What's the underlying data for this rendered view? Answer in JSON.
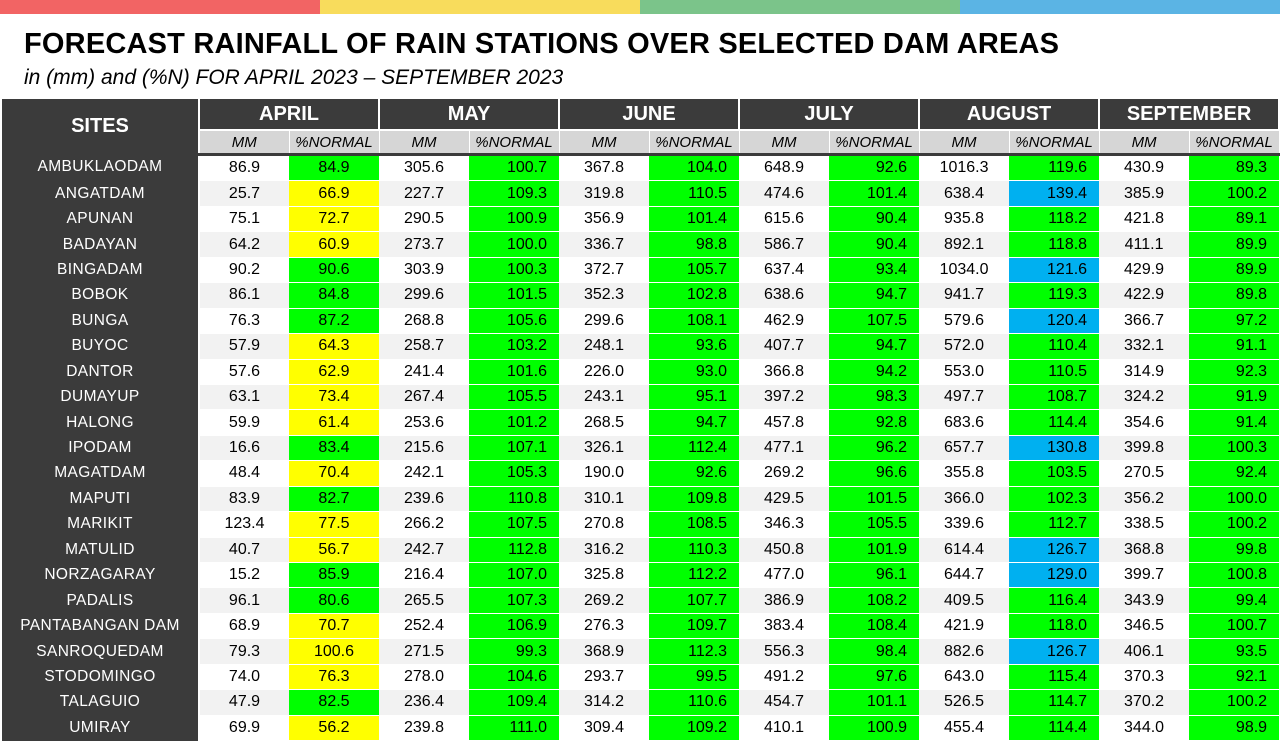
{
  "colors": {
    "top_bar": [
      "#f26464",
      "#f8dc5c",
      "#7bc48a",
      "#5bb4e4"
    ],
    "header_bg": "#3b3b3b",
    "legend": {
      "green": "#00ff00",
      "yellow": "#ffff00",
      "blue": "#00b0f0"
    }
  },
  "title": "FORECAST RAINFALL OF RAIN STATIONS OVER SELECTED DAM AREAS",
  "subtitle": "in (mm) and (%N) FOR APRIL 2023 – SEPTEMBER 2023",
  "table": {
    "site_header": "SITES",
    "months": [
      "APRIL",
      "MAY",
      "JUNE",
      "JULY",
      "AUGUST",
      "SEPTEMBER"
    ],
    "sub_headers": {
      "mm": "MM",
      "pct": "%NORMAL"
    },
    "rows": [
      {
        "site": "AMBUKLAODAM",
        "values": [
          [
            "86.9",
            "84.9",
            "green"
          ],
          [
            "305.6",
            "100.7",
            "green"
          ],
          [
            "367.8",
            "104.0",
            "green"
          ],
          [
            "648.9",
            "92.6",
            "green"
          ],
          [
            "1016.3",
            "119.6",
            "green"
          ],
          [
            "430.9",
            "89.3",
            "green"
          ]
        ]
      },
      {
        "site": "ANGATDAM",
        "values": [
          [
            "25.7",
            "66.9",
            "yellow"
          ],
          [
            "227.7",
            "109.3",
            "green"
          ],
          [
            "319.8",
            "110.5",
            "green"
          ],
          [
            "474.6",
            "101.4",
            "green"
          ],
          [
            "638.4",
            "139.4",
            "blue"
          ],
          [
            "385.9",
            "100.2",
            "green"
          ]
        ]
      },
      {
        "site": "APUNAN",
        "values": [
          [
            "75.1",
            "72.7",
            "yellow"
          ],
          [
            "290.5",
            "100.9",
            "green"
          ],
          [
            "356.9",
            "101.4",
            "green"
          ],
          [
            "615.6",
            "90.4",
            "green"
          ],
          [
            "935.8",
            "118.2",
            "green"
          ],
          [
            "421.8",
            "89.1",
            "green"
          ]
        ]
      },
      {
        "site": "BADAYAN",
        "values": [
          [
            "64.2",
            "60.9",
            "yellow"
          ],
          [
            "273.7",
            "100.0",
            "green"
          ],
          [
            "336.7",
            "98.8",
            "green"
          ],
          [
            "586.7",
            "90.4",
            "green"
          ],
          [
            "892.1",
            "118.8",
            "green"
          ],
          [
            "411.1",
            "89.9",
            "green"
          ]
        ]
      },
      {
        "site": "BINGADAM",
        "values": [
          [
            "90.2",
            "90.6",
            "green"
          ],
          [
            "303.9",
            "100.3",
            "green"
          ],
          [
            "372.7",
            "105.7",
            "green"
          ],
          [
            "637.4",
            "93.4",
            "green"
          ],
          [
            "1034.0",
            "121.6",
            "blue"
          ],
          [
            "429.9",
            "89.9",
            "green"
          ]
        ]
      },
      {
        "site": "BOBOK",
        "values": [
          [
            "86.1",
            "84.8",
            "green"
          ],
          [
            "299.6",
            "101.5",
            "green"
          ],
          [
            "352.3",
            "102.8",
            "green"
          ],
          [
            "638.6",
            "94.7",
            "green"
          ],
          [
            "941.7",
            "119.3",
            "green"
          ],
          [
            "422.9",
            "89.8",
            "green"
          ]
        ]
      },
      {
        "site": "BUNGA",
        "values": [
          [
            "76.3",
            "87.2",
            "green"
          ],
          [
            "268.8",
            "105.6",
            "green"
          ],
          [
            "299.6",
            "108.1",
            "green"
          ],
          [
            "462.9",
            "107.5",
            "green"
          ],
          [
            "579.6",
            "120.4",
            "blue"
          ],
          [
            "366.7",
            "97.2",
            "green"
          ]
        ]
      },
      {
        "site": "BUYOC",
        "values": [
          [
            "57.9",
            "64.3",
            "yellow"
          ],
          [
            "258.7",
            "103.2",
            "green"
          ],
          [
            "248.1",
            "93.6",
            "green"
          ],
          [
            "407.7",
            "94.7",
            "green"
          ],
          [
            "572.0",
            "110.4",
            "green"
          ],
          [
            "332.1",
            "91.1",
            "green"
          ]
        ]
      },
      {
        "site": "DANTOR",
        "values": [
          [
            "57.6",
            "62.9",
            "yellow"
          ],
          [
            "241.4",
            "101.6",
            "green"
          ],
          [
            "226.0",
            "93.0",
            "green"
          ],
          [
            "366.8",
            "94.2",
            "green"
          ],
          [
            "553.0",
            "110.5",
            "green"
          ],
          [
            "314.9",
            "92.3",
            "green"
          ]
        ]
      },
      {
        "site": "DUMAYUP",
        "values": [
          [
            "63.1",
            "73.4",
            "yellow"
          ],
          [
            "267.4",
            "105.5",
            "green"
          ],
          [
            "243.1",
            "95.1",
            "green"
          ],
          [
            "397.2",
            "98.3",
            "green"
          ],
          [
            "497.7",
            "108.7",
            "green"
          ],
          [
            "324.2",
            "91.9",
            "green"
          ]
        ]
      },
      {
        "site": "HALONG",
        "values": [
          [
            "59.9",
            "61.4",
            "yellow"
          ],
          [
            "253.6",
            "101.2",
            "green"
          ],
          [
            "268.5",
            "94.7",
            "green"
          ],
          [
            "457.8",
            "92.8",
            "green"
          ],
          [
            "683.6",
            "114.4",
            "green"
          ],
          [
            "354.6",
            "91.4",
            "green"
          ]
        ]
      },
      {
        "site": "IPODAM",
        "values": [
          [
            "16.6",
            "83.4",
            "green"
          ],
          [
            "215.6",
            "107.1",
            "green"
          ],
          [
            "326.1",
            "112.4",
            "green"
          ],
          [
            "477.1",
            "96.2",
            "green"
          ],
          [
            "657.7",
            "130.8",
            "blue"
          ],
          [
            "399.8",
            "100.3",
            "green"
          ]
        ]
      },
      {
        "site": "MAGATDAM",
        "values": [
          [
            "48.4",
            "70.4",
            "yellow"
          ],
          [
            "242.1",
            "105.3",
            "green"
          ],
          [
            "190.0",
            "92.6",
            "green"
          ],
          [
            "269.2",
            "96.6",
            "green"
          ],
          [
            "355.8",
            "103.5",
            "green"
          ],
          [
            "270.5",
            "92.4",
            "green"
          ]
        ]
      },
      {
        "site": "MAPUTI",
        "values": [
          [
            "83.9",
            "82.7",
            "green"
          ],
          [
            "239.6",
            "110.8",
            "green"
          ],
          [
            "310.1",
            "109.8",
            "green"
          ],
          [
            "429.5",
            "101.5",
            "green"
          ],
          [
            "366.0",
            "102.3",
            "green"
          ],
          [
            "356.2",
            "100.0",
            "green"
          ]
        ]
      },
      {
        "site": "MARIKIT",
        "values": [
          [
            "123.4",
            "77.5",
            "yellow"
          ],
          [
            "266.2",
            "107.5",
            "green"
          ],
          [
            "270.8",
            "108.5",
            "green"
          ],
          [
            "346.3",
            "105.5",
            "green"
          ],
          [
            "339.6",
            "112.7",
            "green"
          ],
          [
            "338.5",
            "100.2",
            "green"
          ]
        ]
      },
      {
        "site": "MATULID",
        "values": [
          [
            "40.7",
            "56.7",
            "yellow"
          ],
          [
            "242.7",
            "112.8",
            "green"
          ],
          [
            "316.2",
            "110.3",
            "green"
          ],
          [
            "450.8",
            "101.9",
            "green"
          ],
          [
            "614.4",
            "126.7",
            "blue"
          ],
          [
            "368.8",
            "99.8",
            "green"
          ]
        ]
      },
      {
        "site": "NORZAGARAY",
        "values": [
          [
            "15.2",
            "85.9",
            "green"
          ],
          [
            "216.4",
            "107.0",
            "green"
          ],
          [
            "325.8",
            "112.2",
            "green"
          ],
          [
            "477.0",
            "96.1",
            "green"
          ],
          [
            "644.7",
            "129.0",
            "blue"
          ],
          [
            "399.7",
            "100.8",
            "green"
          ]
        ]
      },
      {
        "site": "PADALIS",
        "values": [
          [
            "96.1",
            "80.6",
            "green"
          ],
          [
            "265.5",
            "107.3",
            "green"
          ],
          [
            "269.2",
            "107.7",
            "green"
          ],
          [
            "386.9",
            "108.2",
            "green"
          ],
          [
            "409.5",
            "116.4",
            "green"
          ],
          [
            "343.9",
            "99.4",
            "green"
          ]
        ]
      },
      {
        "site": "PANTABANGAN DAM",
        "values": [
          [
            "68.9",
            "70.7",
            "yellow"
          ],
          [
            "252.4",
            "106.9",
            "green"
          ],
          [
            "276.3",
            "109.7",
            "green"
          ],
          [
            "383.4",
            "108.4",
            "green"
          ],
          [
            "421.9",
            "118.0",
            "green"
          ],
          [
            "346.5",
            "100.7",
            "green"
          ]
        ]
      },
      {
        "site": "SANROQUEDAM",
        "values": [
          [
            "79.3",
            "100.6",
            "yellow"
          ],
          [
            "271.5",
            "99.3",
            "green"
          ],
          [
            "368.9",
            "112.3",
            "green"
          ],
          [
            "556.3",
            "98.4",
            "green"
          ],
          [
            "882.6",
            "126.7",
            "blue"
          ],
          [
            "406.1",
            "93.5",
            "green"
          ]
        ]
      },
      {
        "site": "STODOMINGO",
        "values": [
          [
            "74.0",
            "76.3",
            "yellow"
          ],
          [
            "278.0",
            "104.6",
            "green"
          ],
          [
            "293.7",
            "99.5",
            "green"
          ],
          [
            "491.2",
            "97.6",
            "green"
          ],
          [
            "643.0",
            "115.4",
            "green"
          ],
          [
            "370.3",
            "92.1",
            "green"
          ]
        ]
      },
      {
        "site": "TALAGUIO",
        "values": [
          [
            "47.9",
            "82.5",
            "green"
          ],
          [
            "236.4",
            "109.4",
            "green"
          ],
          [
            "314.2",
            "110.6",
            "green"
          ],
          [
            "454.7",
            "101.1",
            "green"
          ],
          [
            "526.5",
            "114.7",
            "green"
          ],
          [
            "370.2",
            "100.2",
            "green"
          ]
        ]
      },
      {
        "site": "UMIRAY",
        "values": [
          [
            "69.9",
            "56.2",
            "yellow"
          ],
          [
            "239.8",
            "111.0",
            "green"
          ],
          [
            "309.4",
            "109.2",
            "green"
          ],
          [
            "410.1",
            "100.9",
            "green"
          ],
          [
            "455.4",
            "114.4",
            "green"
          ],
          [
            "344.0",
            "98.9",
            "green"
          ]
        ]
      }
    ]
  }
}
